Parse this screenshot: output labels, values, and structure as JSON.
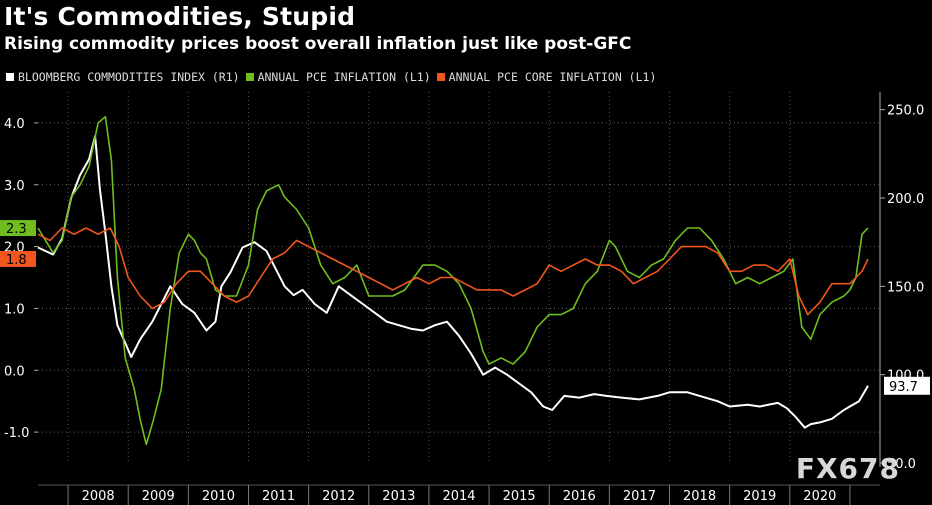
{
  "chart_data": {
    "type": "line",
    "title": "It's Commodities, Stupid",
    "subtitle": "Rising commodity prices boost overall inflation just like post-GFC",
    "legend": [
      {
        "label": "BLOOMBERG COMMODITIES INDEX (R1)",
        "color": "#ffffff"
      },
      {
        "label": "ANNUAL PCE INFLATION (L1)",
        "color": "#6fbe1e"
      },
      {
        "label": "ANNUAL PCE CORE INFLATION (L1)",
        "color": "#f0561e"
      }
    ],
    "legend_placement": "top-left",
    "x_tick_labels": [
      "2008",
      "2009",
      "2010",
      "2011",
      "2012",
      "2013",
      "2014",
      "2015",
      "2016",
      "2017",
      "2018",
      "2019",
      "2020"
    ],
    "x_range": [
      2007.5,
      2021.5
    ],
    "left_axis": {
      "ylim": [
        -1.5,
        4.5
      ],
      "ticks": [
        -1.0,
        0.0,
        1.0,
        2.0,
        3.0,
        4.0
      ],
      "tick_labels": [
        "-1.0",
        "0.0",
        "1.0",
        "2.0",
        "3.0",
        "4.0"
      ]
    },
    "right_axis": {
      "ylim": [
        50,
        260
      ],
      "ticks": [
        50,
        100,
        150,
        200,
        250
      ],
      "tick_labels": [
        "50.0",
        "100.0",
        "150.0",
        "200.0",
        "250.0"
      ]
    },
    "grid": true,
    "last_value_labels": [
      {
        "text": "2.3",
        "series": "ANNUAL PCE INFLATION (L1)",
        "value": 2.3,
        "axis": "left",
        "color": "#6fbe1e"
      },
      {
        "text": "1.8",
        "series": "ANNUAL PCE CORE INFLATION (L1)",
        "value": 1.8,
        "axis": "left",
        "color": "#f0561e"
      },
      {
        "text": "93.7",
        "series": "BLOOMBERG COMMODITIES INDEX (R1)",
        "value": 93.7,
        "axis": "right",
        "color": "#ffffff"
      }
    ],
    "series": [
      {
        "name": "BLOOMBERG COMMODITIES INDEX (R1)",
        "axis": "right",
        "color": "#ffffff",
        "x": [
          2007.5,
          2007.75,
          2007.9,
          2008.05,
          2008.2,
          2008.35,
          2008.45,
          2008.53,
          2008.62,
          2008.72,
          2008.82,
          2008.95,
          2009.05,
          2009.2,
          2009.4,
          2009.55,
          2009.7,
          2009.9,
          2010.1,
          2010.3,
          2010.45,
          2010.55,
          2010.7,
          2010.9,
          2011.1,
          2011.3,
          2011.45,
          2011.6,
          2011.75,
          2011.9,
          2012.1,
          2012.3,
          2012.5,
          2012.7,
          2012.9,
          2013.1,
          2013.3,
          2013.5,
          2013.7,
          2013.9,
          2014.1,
          2014.3,
          2014.5,
          2014.7,
          2014.9,
          2015.1,
          2015.3,
          2015.5,
          2015.7,
          2015.9,
          2016.05,
          2016.25,
          2016.5,
          2016.75,
          2016.95,
          2017.2,
          2017.5,
          2017.8,
          2018.0,
          2018.3,
          2018.5,
          2018.8,
          2019.0,
          2019.3,
          2019.5,
          2019.8,
          2019.95,
          2020.1,
          2020.25,
          2020.35,
          2020.5,
          2020.7,
          2020.9,
          2021.0,
          2021.15,
          2021.3
        ],
        "y": [
          172,
          168,
          177,
          200,
          213,
          222,
          235,
          205,
          180,
          150,
          128,
          118,
          110,
          120,
          130,
          140,
          150,
          140,
          135,
          125,
          130,
          150,
          158,
          172,
          175,
          170,
          160,
          150,
          145,
          148,
          140,
          135,
          150,
          145,
          140,
          135,
          130,
          128,
          126,
          125,
          128,
          130,
          122,
          112,
          100,
          104,
          100,
          95,
          90,
          82,
          80,
          88,
          87,
          89,
          88,
          87,
          86,
          88,
          90,
          90,
          88,
          85,
          82,
          83,
          82,
          84,
          81,
          76,
          70,
          72,
          73,
          75,
          80,
          82,
          85,
          93.7
        ]
      },
      {
        "name": "ANNUAL PCE INFLATION (L1)",
        "axis": "left",
        "color": "#6fbe1e",
        "x": [
          2007.5,
          2007.75,
          2007.9,
          2008.05,
          2008.2,
          2008.35,
          2008.5,
          2008.62,
          2008.72,
          2008.82,
          2008.95,
          2009.1,
          2009.2,
          2009.3,
          2009.42,
          2009.55,
          2009.7,
          2009.85,
          2010.0,
          2010.1,
          2010.2,
          2010.3,
          2010.45,
          2010.6,
          2010.8,
          2011.0,
          2011.15,
          2011.3,
          2011.5,
          2011.6,
          2011.8,
          2012.0,
          2012.2,
          2012.4,
          2012.6,
          2012.8,
          2013.0,
          2013.2,
          2013.4,
          2013.6,
          2013.75,
          2013.9,
          2014.1,
          2014.3,
          2014.5,
          2014.7,
          2014.9,
          2015.0,
          2015.2,
          2015.4,
          2015.6,
          2015.8,
          2016.0,
          2016.2,
          2016.4,
          2016.6,
          2016.8,
          2017.0,
          2017.1,
          2017.3,
          2017.5,
          2017.7,
          2017.9,
          2018.1,
          2018.3,
          2018.5,
          2018.7,
          2018.9,
          2019.1,
          2019.3,
          2019.5,
          2019.7,
          2019.9,
          2020.05,
          2020.2,
          2020.35,
          2020.5,
          2020.7,
          2020.9,
          2021.0,
          2021.1,
          2021.2,
          2021.3
        ],
        "y": [
          2.3,
          1.9,
          2.1,
          2.8,
          3.0,
          3.3,
          4.0,
          4.1,
          3.4,
          1.5,
          0.2,
          -0.3,
          -0.8,
          -1.2,
          -0.8,
          -0.3,
          1.0,
          1.9,
          2.2,
          2.1,
          1.9,
          1.8,
          1.3,
          1.2,
          1.2,
          1.7,
          2.6,
          2.9,
          3.0,
          2.8,
          2.6,
          2.3,
          1.7,
          1.4,
          1.5,
          1.7,
          1.2,
          1.2,
          1.2,
          1.3,
          1.5,
          1.7,
          1.7,
          1.6,
          1.4,
          1.0,
          0.3,
          0.1,
          0.2,
          0.1,
          0.3,
          0.7,
          0.9,
          0.9,
          1.0,
          1.4,
          1.6,
          2.1,
          2.0,
          1.6,
          1.5,
          1.7,
          1.8,
          2.1,
          2.3,
          2.3,
          2.1,
          1.8,
          1.4,
          1.5,
          1.4,
          1.5,
          1.6,
          1.8,
          0.7,
          0.5,
          0.9,
          1.1,
          1.2,
          1.3,
          1.5,
          2.2,
          2.3
        ]
      },
      {
        "name": "ANNUAL PCE CORE INFLATION (L1)",
        "axis": "left",
        "color": "#f0561e",
        "x": [
          2007.5,
          2007.7,
          2007.9,
          2008.1,
          2008.3,
          2008.5,
          2008.7,
          2008.85,
          2009.0,
          2009.2,
          2009.4,
          2009.6,
          2009.8,
          2010.0,
          2010.2,
          2010.4,
          2010.6,
          2010.8,
          2011.0,
          2011.2,
          2011.4,
          2011.6,
          2011.8,
          2012.0,
          2012.2,
          2012.4,
          2012.6,
          2012.8,
          2013.0,
          2013.2,
          2013.4,
          2013.6,
          2013.8,
          2014.0,
          2014.2,
          2014.4,
          2014.6,
          2014.8,
          2015.0,
          2015.2,
          2015.4,
          2015.6,
          2015.8,
          2016.0,
          2016.2,
          2016.4,
          2016.6,
          2016.8,
          2017.0,
          2017.2,
          2017.4,
          2017.6,
          2017.8,
          2018.0,
          2018.2,
          2018.4,
          2018.6,
          2018.8,
          2019.0,
          2019.2,
          2019.4,
          2019.6,
          2019.8,
          2020.0,
          2020.15,
          2020.3,
          2020.5,
          2020.7,
          2020.9,
          2021.0,
          2021.1,
          2021.2,
          2021.3
        ],
        "y": [
          2.2,
          2.1,
          2.3,
          2.2,
          2.3,
          2.2,
          2.3,
          2.0,
          1.5,
          1.2,
          1.0,
          1.1,
          1.4,
          1.6,
          1.6,
          1.4,
          1.2,
          1.1,
          1.2,
          1.5,
          1.8,
          1.9,
          2.1,
          2.0,
          1.9,
          1.8,
          1.7,
          1.6,
          1.5,
          1.4,
          1.3,
          1.4,
          1.5,
          1.4,
          1.5,
          1.5,
          1.4,
          1.3,
          1.3,
          1.3,
          1.2,
          1.3,
          1.4,
          1.7,
          1.6,
          1.7,
          1.8,
          1.7,
          1.7,
          1.6,
          1.4,
          1.5,
          1.6,
          1.8,
          2.0,
          2.0,
          2.0,
          1.9,
          1.6,
          1.6,
          1.7,
          1.7,
          1.6,
          1.8,
          1.2,
          0.9,
          1.1,
          1.4,
          1.4,
          1.4,
          1.5,
          1.6,
          1.8
        ]
      }
    ]
  },
  "watermark": "FX678"
}
